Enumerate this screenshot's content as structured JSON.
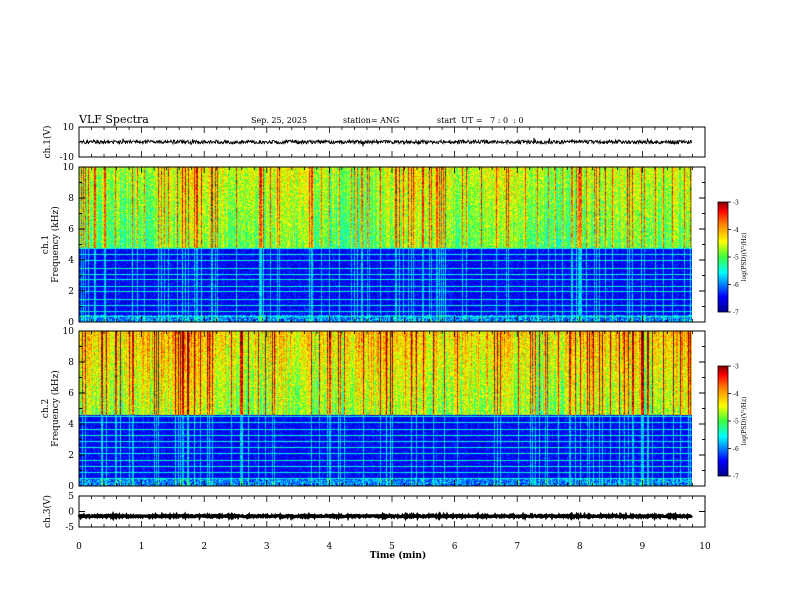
{
  "header": {
    "title": "VLF Spectra",
    "date": "Sep. 25, 2025",
    "station": "station= ANG",
    "start": "start  UT =   7 : 0  : 0"
  },
  "chart_data": [
    {
      "type": "line",
      "name": "ch1-waveform",
      "ylabel": "ch.1(V)",
      "ylim": [
        -10,
        10
      ],
      "y_ticks": [
        "10",
        "-10"
      ],
      "baseline": 0,
      "noise_amplitude": 1.2
    },
    {
      "type": "heatmap",
      "name": "ch1-spectrogram",
      "ylabel_line1": "ch.1",
      "ylabel_line2": "Frequency  (kHz)",
      "ylim": [
        0,
        10
      ],
      "y_ticks": [
        "0",
        "2",
        "4",
        "6",
        "8",
        "10"
      ],
      "colorbar_label": "log(PSD)(V²/Hz)",
      "colorbar_ticks": [
        "-3",
        "-4",
        "-5",
        "-6",
        "-7"
      ],
      "colorbar_range": [
        -7,
        -3
      ],
      "time_range_min": [
        0,
        9.8
      ],
      "carrier_lines_khz": [
        0.4,
        0.7,
        1.1,
        1.5,
        2.0,
        2.3,
        2.8,
        3.1,
        3.5,
        4.0,
        4.4,
        4.8
      ],
      "cutoff_khz": 4.8
    },
    {
      "type": "heatmap",
      "name": "ch2-spectrogram",
      "ylabel_line1": "ch.2",
      "ylabel_line2": "Frequency  (kHz)",
      "ylim": [
        0,
        10
      ],
      "y_ticks": [
        "0",
        "2",
        "4",
        "6",
        "8",
        "10"
      ],
      "colorbar_label": "log(PSD)(V²/Hz)",
      "colorbar_ticks": [
        "-3",
        "-4",
        "-5",
        "-6",
        "-7"
      ],
      "colorbar_range": [
        -7,
        -3
      ],
      "time_range_min": [
        0,
        9.8
      ],
      "carrier_lines_khz": [
        0.5,
        0.9,
        1.3,
        1.7,
        2.1,
        2.5,
        2.9,
        3.3,
        3.7,
        4.1,
        4.5
      ],
      "cutoff_khz": 4.6
    },
    {
      "type": "line",
      "name": "ch3-waveform",
      "ylabel": "ch.3(V)",
      "ylim": [
        -5,
        5
      ],
      "y_ticks": [
        "5",
        "0",
        "-5"
      ],
      "baseline": -1.5,
      "noise_amplitude": 0.25
    }
  ],
  "x_axis": {
    "label": "Time  (min)",
    "range": [
      0,
      10
    ],
    "ticks": [
      "0",
      "1",
      "2",
      "3",
      "4",
      "5",
      "6",
      "7",
      "8",
      "9",
      "10"
    ]
  },
  "colors": {
    "colormap": [
      "#00008f",
      "#0000ff",
      "#00ffff",
      "#3cff3c",
      "#ffff00",
      "#ff7f00",
      "#ff0000",
      "#7f0000"
    ]
  }
}
